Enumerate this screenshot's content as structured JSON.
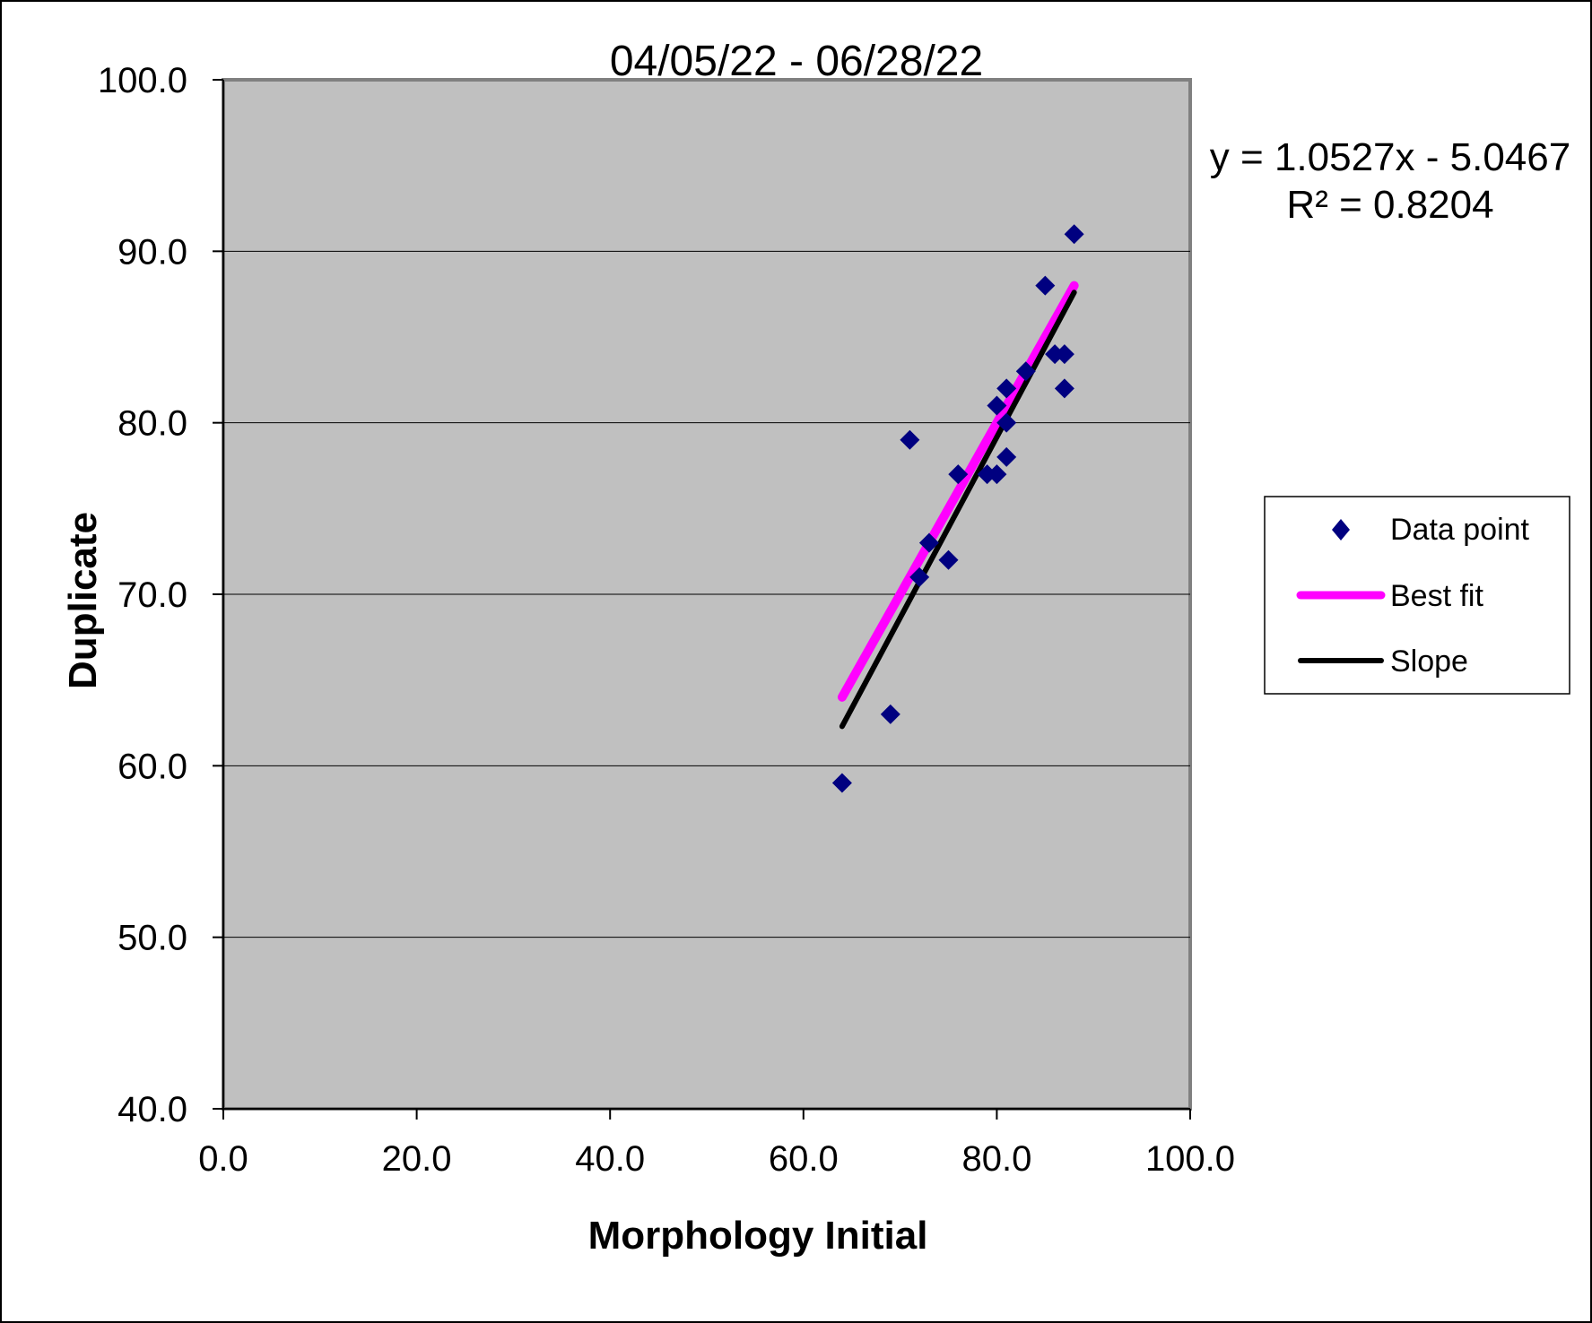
{
  "chart_data": {
    "type": "scatter",
    "title": "04/05/22 - 06/28/22",
    "xlabel": "Morphology Initial",
    "ylabel": "Duplicate",
    "xlim": [
      0,
      100
    ],
    "ylim": [
      40,
      100
    ],
    "x_ticks": [
      0,
      20,
      40,
      60,
      80,
      100
    ],
    "y_ticks": [
      40,
      50,
      60,
      70,
      80,
      90,
      100
    ],
    "x_tick_labels": [
      "0.0",
      "20.0",
      "40.0",
      "60.0",
      "80.0",
      "100.0"
    ],
    "y_tick_labels": [
      "40.0",
      "50.0",
      "60.0",
      "70.0",
      "80.0",
      "90.0",
      "100.0"
    ],
    "grid": "horizontal",
    "plot_background": "#c0c0c0",
    "legend_position": "right",
    "series": [
      {
        "name": "Data point",
        "kind": "markers",
        "marker": "diamond",
        "color": "#000080",
        "points": [
          {
            "x": 64,
            "y": 59
          },
          {
            "x": 69,
            "y": 63
          },
          {
            "x": 71,
            "y": 79
          },
          {
            "x": 72,
            "y": 71
          },
          {
            "x": 73,
            "y": 73
          },
          {
            "x": 75,
            "y": 72
          },
          {
            "x": 76,
            "y": 77
          },
          {
            "x": 79,
            "y": 77
          },
          {
            "x": 80,
            "y": 77
          },
          {
            "x": 80,
            "y": 81
          },
          {
            "x": 81,
            "y": 82
          },
          {
            "x": 81,
            "y": 80
          },
          {
            "x": 81,
            "y": 78
          },
          {
            "x": 83,
            "y": 83
          },
          {
            "x": 85,
            "y": 88
          },
          {
            "x": 86,
            "y": 84
          },
          {
            "x": 87,
            "y": 84
          },
          {
            "x": 87,
            "y": 82
          },
          {
            "x": 88,
            "y": 91
          }
        ]
      },
      {
        "name": "Best fit",
        "kind": "line",
        "color": "#ff00ff",
        "points": [
          {
            "x": 64,
            "y": 64
          },
          {
            "x": 88,
            "y": 88
          }
        ]
      },
      {
        "name": "Slope",
        "kind": "line",
        "color": "#000000",
        "points": [
          {
            "x": 64,
            "y": 62.3
          },
          {
            "x": 88,
            "y": 87.6
          }
        ]
      }
    ],
    "annotations": [
      {
        "text": "y = 1.0527x - 5.0467"
      },
      {
        "text": "R² = 0.8204"
      }
    ]
  }
}
